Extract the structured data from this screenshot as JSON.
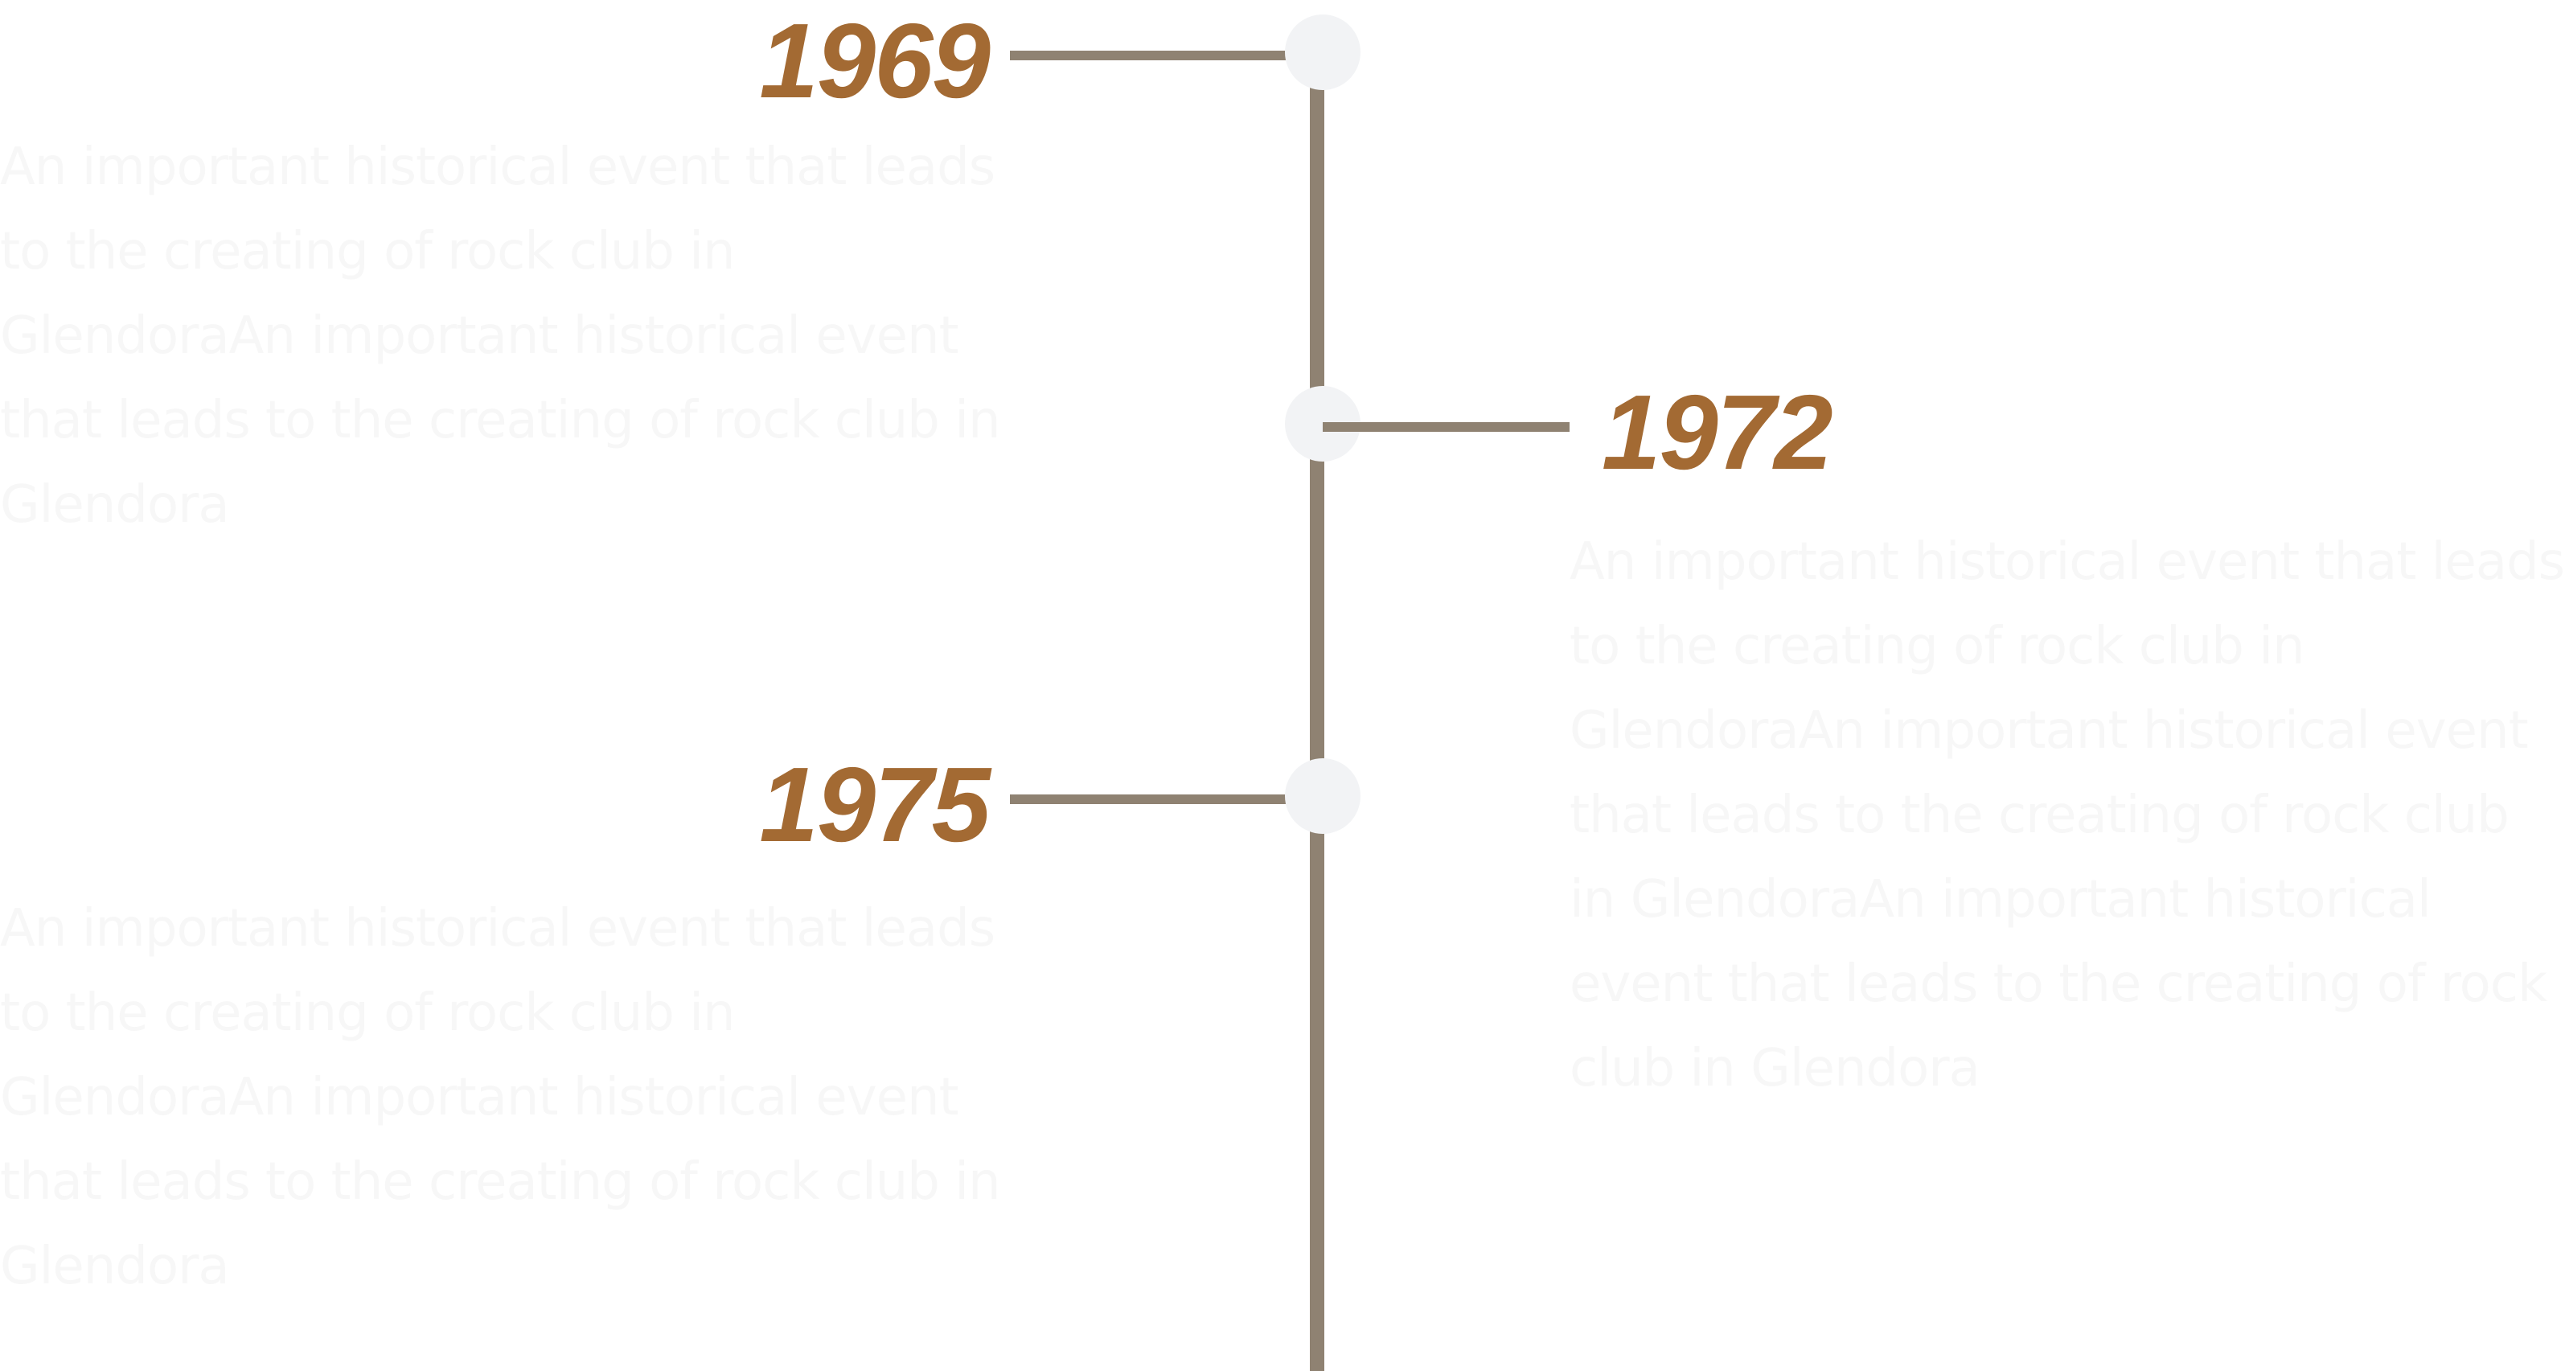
{
  "colors": {
    "spine": "#8f8272",
    "connector": "#8f8272",
    "node": "#f2f3f5",
    "year": "#a36a33",
    "description": "#f7f7f7",
    "background": "#ffffff"
  },
  "events": [
    {
      "side": "left",
      "year": "1969",
      "description": "An important historical event that leads to the creating of rock club in GlendoraAn important historical event that leads to the creating of rock club in Glendora"
    },
    {
      "side": "right",
      "year": "1972",
      "description": "An important historical event that leads to the creating of rock club in GlendoraAn important historical event that leads to the creating of rock club in GlendoraAn important historical event that leads to the creating of rock club in Glendora"
    },
    {
      "side": "left",
      "year": "1975",
      "description": "An important historical event that leads to the creating of rock club in GlendoraAn important historical event that leads to the creating of rock club in Glendora"
    }
  ]
}
